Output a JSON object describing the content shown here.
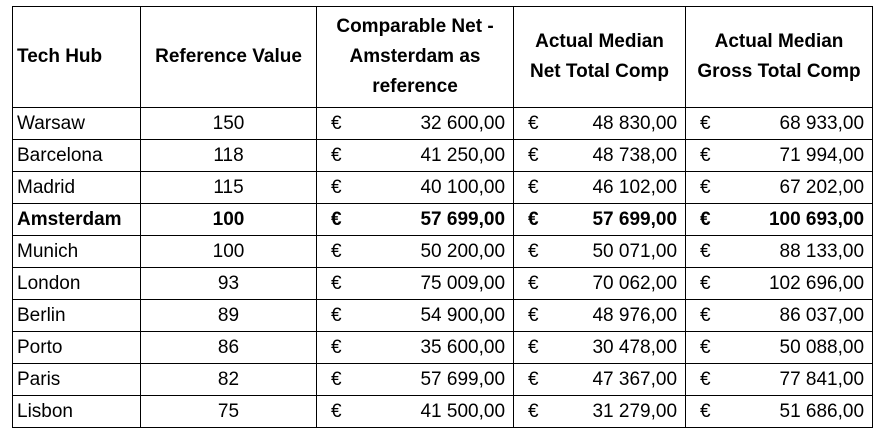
{
  "table": {
    "headers": [
      "Tech Hub",
      "Reference Value",
      "Comparable Net - Amsterdam as reference",
      "Actual Median Net Total Comp",
      "Actual Median Gross Total Comp"
    ],
    "rows": [
      {
        "cells": [
          "Warsaw",
          150,
          "€",
          "32 600,00",
          "€",
          "48 830,00",
          "€",
          "68 933,00"
        ],
        "bold": false
      },
      {
        "cells": [
          "Barcelona",
          118,
          "€",
          "41 250,00",
          "€",
          "48 738,00",
          "€",
          "71 994,00"
        ],
        "bold": false
      },
      {
        "cells": [
          "Madrid",
          115,
          "€",
          "40 100,00",
          "€",
          "46 102,00",
          "€",
          "67 202,00"
        ],
        "bold": false
      },
      {
        "cells": [
          "Amsterdam",
          100,
          "€",
          "57 699,00",
          "€",
          "57 699,00",
          "€",
          "100 693,00"
        ],
        "bold": true
      },
      {
        "cells": [
          "Munich",
          100,
          "€",
          "50 200,00",
          "€",
          "50 071,00",
          "€",
          "88 133,00"
        ],
        "bold": false
      },
      {
        "cells": [
          "London",
          93,
          "€",
          "75 009,00",
          "€",
          "70 062,00",
          "€",
          "102 696,00"
        ],
        "bold": false
      },
      {
        "cells": [
          "Berlin",
          89,
          "€",
          "54 900,00",
          "€",
          "48 976,00",
          "€",
          "86 037,00"
        ],
        "bold": false
      },
      {
        "cells": [
          "Porto",
          86,
          "€",
          "35 600,00",
          "€",
          "30 478,00",
          "€",
          "50 088,00"
        ],
        "bold": false
      },
      {
        "cells": [
          "Paris",
          82,
          "€",
          "57 699,00",
          "€",
          "47 367,00",
          "€",
          "77 841,00"
        ],
        "bold": false
      },
      {
        "cells": [
          "Lisbon",
          75,
          "€",
          "41 500,00",
          "€",
          "31 279,00",
          "€",
          "51 686,00"
        ],
        "bold": false
      }
    ]
  }
}
